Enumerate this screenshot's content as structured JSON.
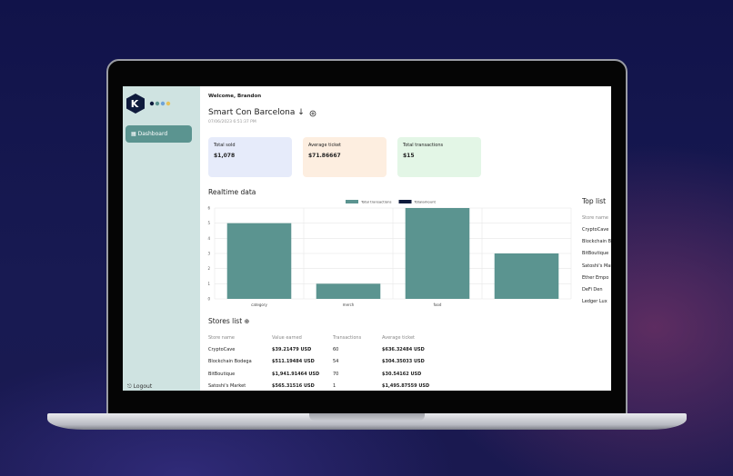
{
  "sidebar": {
    "logo": "K",
    "nav": "Dashboard",
    "logout": "Logout"
  },
  "header": {
    "welcome": "Welcome, Brandon",
    "event": "Smart Con Barcelona",
    "date": "07/06/2023 6:51:37 PM"
  },
  "stats": [
    {
      "label": "Total sold",
      "value": "$1,078"
    },
    {
      "label": "Average ticket",
      "value": "$71.86667"
    },
    {
      "label": "Total transactions",
      "value": "$15"
    }
  ],
  "chart_data": {
    "type": "bar",
    "title": "Realtime data",
    "categories": [
      "category",
      "merch",
      "food",
      null
    ],
    "series": [
      {
        "name": "Total transactions",
        "color": "#5b9490",
        "values": [
          5,
          1,
          6,
          3
        ]
      },
      {
        "name": "Totalamount",
        "color": "#0f1a3c",
        "values": [
          null,
          null,
          null,
          null
        ]
      }
    ],
    "ylim": [
      0,
      6
    ],
    "yticks": [
      0,
      1,
      2,
      3,
      4,
      5,
      6
    ],
    "grid": true
  },
  "top_list": {
    "title": "Top list",
    "header": "Store name",
    "items": [
      "CryptoCave",
      "Blockchain Bodega",
      "BitBoutique",
      "Satoshi's Market",
      "Ether Empo",
      "DeFi Den",
      "Ledger Lux"
    ]
  },
  "stores_list": {
    "title": "Stores list",
    "columns": [
      "Store name",
      "Value earned",
      "Transactions",
      "Average ticket"
    ],
    "rows": [
      [
        "CryptoCave",
        "$39.21479 USD",
        "60",
        "$636.32484 USD"
      ],
      [
        "Blockchain Bodega",
        "$511.19484 USD",
        "54",
        "$304.35033 USD"
      ],
      [
        "BitBoutique",
        "$1,941.91464 USD",
        "70",
        "$30.54162 USD"
      ],
      [
        "Satoshi's Market",
        "$565.31516 USD",
        "1",
        "$1,495.87559 USD"
      ]
    ]
  }
}
